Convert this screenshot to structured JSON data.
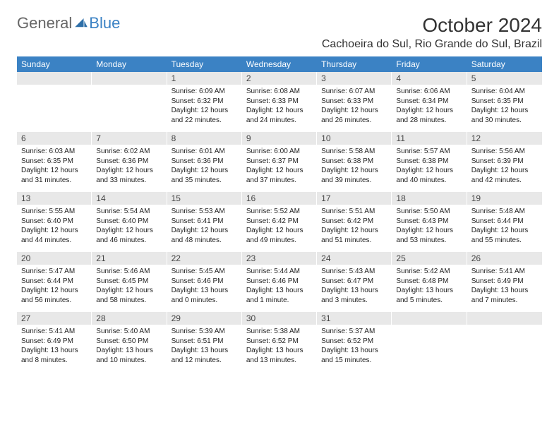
{
  "brand": {
    "part1": "General",
    "part2": "Blue"
  },
  "title": "October 2024",
  "location": "Cachoeira do Sul, Rio Grande do Sul, Brazil",
  "colors": {
    "header_bg": "#3b82c4",
    "header_text": "#ffffff",
    "daynum_bg": "#e8e8e8",
    "text": "#333333",
    "brand_gray": "#666666",
    "brand_blue": "#3b82c4"
  },
  "day_names": [
    "Sunday",
    "Monday",
    "Tuesday",
    "Wednesday",
    "Thursday",
    "Friday",
    "Saturday"
  ],
  "weeks": [
    {
      "nums": [
        "",
        "",
        "1",
        "2",
        "3",
        "4",
        "5"
      ],
      "cells": [
        null,
        null,
        {
          "sunrise": "Sunrise: 6:09 AM",
          "sunset": "Sunset: 6:32 PM",
          "daylight": "Daylight: 12 hours and 22 minutes."
        },
        {
          "sunrise": "Sunrise: 6:08 AM",
          "sunset": "Sunset: 6:33 PM",
          "daylight": "Daylight: 12 hours and 24 minutes."
        },
        {
          "sunrise": "Sunrise: 6:07 AM",
          "sunset": "Sunset: 6:33 PM",
          "daylight": "Daylight: 12 hours and 26 minutes."
        },
        {
          "sunrise": "Sunrise: 6:06 AM",
          "sunset": "Sunset: 6:34 PM",
          "daylight": "Daylight: 12 hours and 28 minutes."
        },
        {
          "sunrise": "Sunrise: 6:04 AM",
          "sunset": "Sunset: 6:35 PM",
          "daylight": "Daylight: 12 hours and 30 minutes."
        }
      ]
    },
    {
      "nums": [
        "6",
        "7",
        "8",
        "9",
        "10",
        "11",
        "12"
      ],
      "cells": [
        {
          "sunrise": "Sunrise: 6:03 AM",
          "sunset": "Sunset: 6:35 PM",
          "daylight": "Daylight: 12 hours and 31 minutes."
        },
        {
          "sunrise": "Sunrise: 6:02 AM",
          "sunset": "Sunset: 6:36 PM",
          "daylight": "Daylight: 12 hours and 33 minutes."
        },
        {
          "sunrise": "Sunrise: 6:01 AM",
          "sunset": "Sunset: 6:36 PM",
          "daylight": "Daylight: 12 hours and 35 minutes."
        },
        {
          "sunrise": "Sunrise: 6:00 AM",
          "sunset": "Sunset: 6:37 PM",
          "daylight": "Daylight: 12 hours and 37 minutes."
        },
        {
          "sunrise": "Sunrise: 5:58 AM",
          "sunset": "Sunset: 6:38 PM",
          "daylight": "Daylight: 12 hours and 39 minutes."
        },
        {
          "sunrise": "Sunrise: 5:57 AM",
          "sunset": "Sunset: 6:38 PM",
          "daylight": "Daylight: 12 hours and 40 minutes."
        },
        {
          "sunrise": "Sunrise: 5:56 AM",
          "sunset": "Sunset: 6:39 PM",
          "daylight": "Daylight: 12 hours and 42 minutes."
        }
      ]
    },
    {
      "nums": [
        "13",
        "14",
        "15",
        "16",
        "17",
        "18",
        "19"
      ],
      "cells": [
        {
          "sunrise": "Sunrise: 5:55 AM",
          "sunset": "Sunset: 6:40 PM",
          "daylight": "Daylight: 12 hours and 44 minutes."
        },
        {
          "sunrise": "Sunrise: 5:54 AM",
          "sunset": "Sunset: 6:40 PM",
          "daylight": "Daylight: 12 hours and 46 minutes."
        },
        {
          "sunrise": "Sunrise: 5:53 AM",
          "sunset": "Sunset: 6:41 PM",
          "daylight": "Daylight: 12 hours and 48 minutes."
        },
        {
          "sunrise": "Sunrise: 5:52 AM",
          "sunset": "Sunset: 6:42 PM",
          "daylight": "Daylight: 12 hours and 49 minutes."
        },
        {
          "sunrise": "Sunrise: 5:51 AM",
          "sunset": "Sunset: 6:42 PM",
          "daylight": "Daylight: 12 hours and 51 minutes."
        },
        {
          "sunrise": "Sunrise: 5:50 AM",
          "sunset": "Sunset: 6:43 PM",
          "daylight": "Daylight: 12 hours and 53 minutes."
        },
        {
          "sunrise": "Sunrise: 5:48 AM",
          "sunset": "Sunset: 6:44 PM",
          "daylight": "Daylight: 12 hours and 55 minutes."
        }
      ]
    },
    {
      "nums": [
        "20",
        "21",
        "22",
        "23",
        "24",
        "25",
        "26"
      ],
      "cells": [
        {
          "sunrise": "Sunrise: 5:47 AM",
          "sunset": "Sunset: 6:44 PM",
          "daylight": "Daylight: 12 hours and 56 minutes."
        },
        {
          "sunrise": "Sunrise: 5:46 AM",
          "sunset": "Sunset: 6:45 PM",
          "daylight": "Daylight: 12 hours and 58 minutes."
        },
        {
          "sunrise": "Sunrise: 5:45 AM",
          "sunset": "Sunset: 6:46 PM",
          "daylight": "Daylight: 13 hours and 0 minutes."
        },
        {
          "sunrise": "Sunrise: 5:44 AM",
          "sunset": "Sunset: 6:46 PM",
          "daylight": "Daylight: 13 hours and 1 minute."
        },
        {
          "sunrise": "Sunrise: 5:43 AM",
          "sunset": "Sunset: 6:47 PM",
          "daylight": "Daylight: 13 hours and 3 minutes."
        },
        {
          "sunrise": "Sunrise: 5:42 AM",
          "sunset": "Sunset: 6:48 PM",
          "daylight": "Daylight: 13 hours and 5 minutes."
        },
        {
          "sunrise": "Sunrise: 5:41 AM",
          "sunset": "Sunset: 6:49 PM",
          "daylight": "Daylight: 13 hours and 7 minutes."
        }
      ]
    },
    {
      "nums": [
        "27",
        "28",
        "29",
        "30",
        "31",
        "",
        ""
      ],
      "cells": [
        {
          "sunrise": "Sunrise: 5:41 AM",
          "sunset": "Sunset: 6:49 PM",
          "daylight": "Daylight: 13 hours and 8 minutes."
        },
        {
          "sunrise": "Sunrise: 5:40 AM",
          "sunset": "Sunset: 6:50 PM",
          "daylight": "Daylight: 13 hours and 10 minutes."
        },
        {
          "sunrise": "Sunrise: 5:39 AM",
          "sunset": "Sunset: 6:51 PM",
          "daylight": "Daylight: 13 hours and 12 minutes."
        },
        {
          "sunrise": "Sunrise: 5:38 AM",
          "sunset": "Sunset: 6:52 PM",
          "daylight": "Daylight: 13 hours and 13 minutes."
        },
        {
          "sunrise": "Sunrise: 5:37 AM",
          "sunset": "Sunset: 6:52 PM",
          "daylight": "Daylight: 13 hours and 15 minutes."
        },
        null,
        null
      ]
    }
  ]
}
